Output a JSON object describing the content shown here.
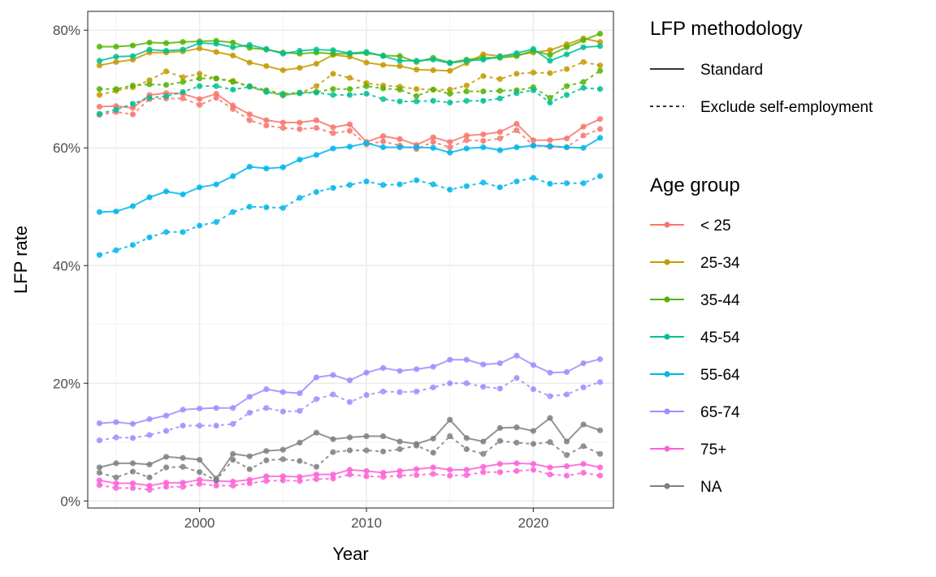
{
  "chart_data": {
    "type": "line",
    "xlabel": "Year",
    "ylabel": "LFP rate",
    "xlim": [
      1993.3,
      2024.8
    ],
    "ylim": [
      -0.012,
      0.832
    ],
    "x_ticks": [
      2000,
      2010,
      2020
    ],
    "x_tick_labels": [
      "2000",
      "2010",
      "2020"
    ],
    "y_ticks": [
      0,
      0.2,
      0.4,
      0.6,
      0.8
    ],
    "y_tick_labels": [
      "0%",
      "20%",
      "40%",
      "60%",
      "80%"
    ],
    "grid": true,
    "legend_position": "right",
    "legend": {
      "linetype_title": "LFP methodology",
      "linetypes": [
        {
          "name": "Standard",
          "dash": "solid"
        },
        {
          "name": "Exclude self-employment",
          "dash": "dashed"
        }
      ],
      "color_title": "Age group"
    },
    "x": [
      1994,
      1995,
      1996,
      1997,
      1998,
      1999,
      2000,
      2001,
      2002,
      2003,
      2004,
      2005,
      2006,
      2007,
      2008,
      2009,
      2010,
      2011,
      2012,
      2013,
      2014,
      2015,
      2016,
      2017,
      2018,
      2019,
      2020,
      2021,
      2022,
      2023,
      2024
    ],
    "series": [
      {
        "name": "< 25",
        "color": "#F8766D",
        "standard": [
          0.67,
          0.671,
          0.668,
          0.69,
          0.693,
          0.692,
          0.683,
          0.692,
          0.672,
          0.657,
          0.647,
          0.643,
          0.643,
          0.647,
          0.635,
          0.64,
          0.61,
          0.62,
          0.615,
          0.605,
          0.618,
          0.61,
          0.621,
          0.623,
          0.627,
          0.641,
          0.613,
          0.613,
          0.616,
          0.636,
          0.649
        ],
        "exclude_self_employment": [
          0.656,
          0.661,
          0.657,
          0.683,
          0.684,
          0.684,
          0.673,
          0.685,
          0.666,
          0.647,
          0.638,
          0.634,
          0.632,
          0.634,
          0.625,
          0.629,
          0.606,
          0.611,
          0.604,
          0.598,
          0.61,
          0.601,
          0.613,
          0.612,
          0.616,
          0.63,
          0.604,
          0.602,
          0.601,
          0.621,
          0.632
        ]
      },
      {
        "name": "25-34",
        "color": "#C49A00",
        "standard": [
          0.74,
          0.746,
          0.75,
          0.762,
          0.762,
          0.764,
          0.769,
          0.763,
          0.757,
          0.745,
          0.739,
          0.732,
          0.736,
          0.743,
          0.758,
          0.755,
          0.745,
          0.741,
          0.739,
          0.733,
          0.732,
          0.731,
          0.744,
          0.759,
          0.756,
          0.758,
          0.762,
          0.766,
          0.776,
          0.786,
          0.78
        ],
        "exclude_self_employment": [
          0.69,
          0.697,
          0.703,
          0.715,
          0.73,
          0.72,
          0.726,
          0.718,
          0.714,
          0.704,
          0.696,
          0.689,
          0.693,
          0.705,
          0.726,
          0.719,
          0.71,
          0.706,
          0.704,
          0.7,
          0.699,
          0.699,
          0.706,
          0.722,
          0.717,
          0.726,
          0.728,
          0.727,
          0.734,
          0.746,
          0.74
        ]
      },
      {
        "name": "35-44",
        "color": "#53B400",
        "standard": [
          0.772,
          0.772,
          0.774,
          0.779,
          0.778,
          0.78,
          0.781,
          0.782,
          0.779,
          0.77,
          0.767,
          0.762,
          0.76,
          0.762,
          0.76,
          0.76,
          0.761,
          0.757,
          0.756,
          0.746,
          0.753,
          0.745,
          0.75,
          0.753,
          0.753,
          0.756,
          0.765,
          0.758,
          0.771,
          0.783,
          0.794
        ],
        "exclude_self_employment": [
          0.7,
          0.7,
          0.706,
          0.708,
          0.707,
          0.712,
          0.718,
          0.718,
          0.712,
          0.705,
          0.698,
          0.692,
          0.694,
          0.695,
          0.7,
          0.7,
          0.705,
          0.701,
          0.699,
          0.688,
          0.699,
          0.692,
          0.696,
          0.696,
          0.697,
          0.698,
          0.703,
          0.685,
          0.705,
          0.712,
          0.731
        ]
      },
      {
        "name": "45-54",
        "color": "#00C094",
        "standard": [
          0.748,
          0.755,
          0.756,
          0.767,
          0.765,
          0.767,
          0.778,
          0.777,
          0.771,
          0.775,
          0.768,
          0.76,
          0.765,
          0.767,
          0.766,
          0.761,
          0.763,
          0.756,
          0.748,
          0.748,
          0.75,
          0.744,
          0.748,
          0.75,
          0.755,
          0.761,
          0.768,
          0.748,
          0.759,
          0.771,
          0.773
        ],
        "exclude_self_employment": [
          0.658,
          0.665,
          0.675,
          0.685,
          0.688,
          0.695,
          0.705,
          0.705,
          0.699,
          0.704,
          0.695,
          0.69,
          0.693,
          0.694,
          0.69,
          0.69,
          0.692,
          0.683,
          0.679,
          0.679,
          0.68,
          0.677,
          0.68,
          0.68,
          0.684,
          0.693,
          0.698,
          0.677,
          0.69,
          0.702,
          0.7
        ]
      },
      {
        "name": "55-64",
        "color": "#00B6EB",
        "standard": [
          0.491,
          0.492,
          0.501,
          0.516,
          0.526,
          0.521,
          0.533,
          0.538,
          0.552,
          0.568,
          0.565,
          0.567,
          0.58,
          0.588,
          0.599,
          0.602,
          0.608,
          0.601,
          0.601,
          0.601,
          0.6,
          0.592,
          0.599,
          0.601,
          0.596,
          0.601,
          0.604,
          0.603,
          0.601,
          0.6,
          0.617
        ],
        "exclude_self_employment": [
          0.418,
          0.426,
          0.435,
          0.448,
          0.457,
          0.457,
          0.468,
          0.474,
          0.491,
          0.5,
          0.499,
          0.498,
          0.515,
          0.525,
          0.532,
          0.537,
          0.543,
          0.537,
          0.538,
          0.545,
          0.538,
          0.529,
          0.535,
          0.541,
          0.533,
          0.543,
          0.549,
          0.539,
          0.54,
          0.54,
          0.552
        ]
      },
      {
        "name": "65-74",
        "color": "#A58AFF",
        "standard": [
          0.132,
          0.134,
          0.131,
          0.139,
          0.145,
          0.155,
          0.157,
          0.158,
          0.158,
          0.177,
          0.19,
          0.185,
          0.183,
          0.21,
          0.214,
          0.205,
          0.218,
          0.226,
          0.221,
          0.224,
          0.228,
          0.24,
          0.24,
          0.232,
          0.234,
          0.247,
          0.231,
          0.218,
          0.219,
          0.234,
          0.241
        ],
        "exclude_self_employment": [
          0.103,
          0.108,
          0.107,
          0.112,
          0.119,
          0.128,
          0.128,
          0.128,
          0.131,
          0.15,
          0.158,
          0.152,
          0.153,
          0.173,
          0.181,
          0.168,
          0.18,
          0.186,
          0.185,
          0.186,
          0.193,
          0.2,
          0.2,
          0.194,
          0.191,
          0.209,
          0.19,
          0.178,
          0.181,
          0.193,
          0.202
        ]
      },
      {
        "name": "75+",
        "color": "#FB61D7",
        "standard": [
          0.035,
          0.03,
          0.03,
          0.026,
          0.031,
          0.031,
          0.036,
          0.034,
          0.033,
          0.036,
          0.042,
          0.042,
          0.041,
          0.045,
          0.045,
          0.053,
          0.051,
          0.048,
          0.051,
          0.054,
          0.057,
          0.053,
          0.053,
          0.058,
          0.063,
          0.064,
          0.063,
          0.057,
          0.059,
          0.063,
          0.057
        ],
        "exclude_self_employment": [
          0.027,
          0.022,
          0.022,
          0.019,
          0.024,
          0.024,
          0.029,
          0.026,
          0.026,
          0.03,
          0.034,
          0.035,
          0.034,
          0.037,
          0.038,
          0.045,
          0.042,
          0.041,
          0.043,
          0.044,
          0.046,
          0.043,
          0.044,
          0.049,
          0.049,
          0.051,
          0.053,
          0.045,
          0.043,
          0.048,
          0.043
        ]
      },
      {
        "name": "NA",
        "color": "#808080",
        "standard": [
          0.057,
          0.064,
          0.064,
          0.062,
          0.075,
          0.073,
          0.07,
          0.038,
          0.08,
          0.076,
          0.085,
          0.087,
          0.099,
          0.116,
          0.105,
          0.108,
          0.11,
          0.11,
          0.101,
          0.097,
          0.106,
          0.138,
          0.107,
          0.101,
          0.124,
          0.125,
          0.119,
          0.141,
          0.101,
          0.13,
          0.12
        ],
        "exclude_self_employment": [
          0.048,
          0.04,
          0.05,
          0.04,
          0.057,
          0.058,
          0.049,
          0.035,
          0.07,
          0.054,
          0.069,
          0.071,
          0.068,
          0.058,
          0.083,
          0.086,
          0.086,
          0.084,
          0.088,
          0.094,
          0.082,
          0.11,
          0.088,
          0.08,
          0.102,
          0.099,
          0.097,
          0.1,
          0.078,
          0.093,
          0.08
        ]
      }
    ]
  }
}
